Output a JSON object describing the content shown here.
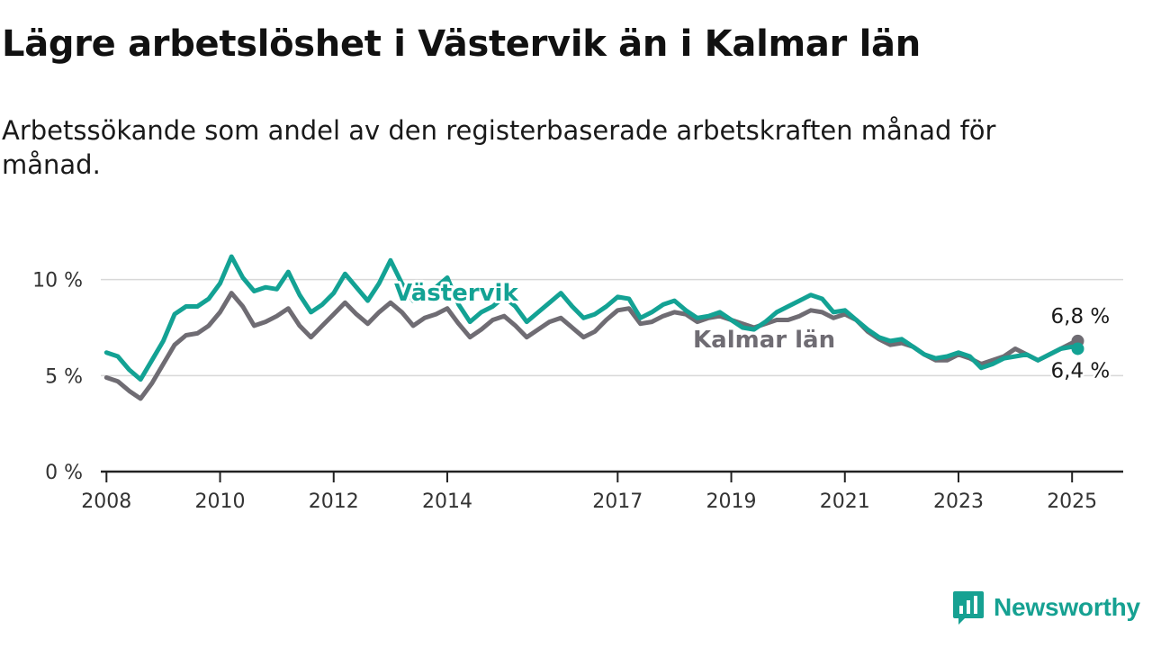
{
  "title": "Lägre arbetslöshet i Västervik än i Kalmar län",
  "subtitle": "Arbetssökande som andel av den registerbaserade arbetskraften månad för månad.",
  "brand": {
    "name": "Newsworthy",
    "icon": "newsworthy-logo-icon"
  },
  "colors": {
    "vastervik": "#13a294",
    "kalmar": "#6f6c73",
    "grid": "#d8d8d8",
    "axis": "#222222"
  },
  "chart_data": {
    "type": "line",
    "xlim": [
      2007.9,
      2025.9
    ],
    "ylim": [
      0,
      12
    ],
    "grid": true,
    "y_ticks": [
      {
        "value": 0,
        "label": "0 %"
      },
      {
        "value": 5,
        "label": "5 %"
      },
      {
        "value": 10,
        "label": "10 %"
      }
    ],
    "x_ticks": [
      {
        "value": 2008,
        "label": "2008"
      },
      {
        "value": 2010,
        "label": "2010"
      },
      {
        "value": 2012,
        "label": "2012"
      },
      {
        "value": 2014,
        "label": "2014"
      },
      {
        "value": 2017,
        "label": "2017"
      },
      {
        "value": 2019,
        "label": "2019"
      },
      {
        "value": 2021,
        "label": "2021"
      },
      {
        "value": 2023,
        "label": "2023"
      },
      {
        "value": 2025,
        "label": "2025"
      }
    ],
    "series": [
      {
        "key": "kalmar",
        "name": "Kalmar län",
        "end_label": "6,8 %",
        "x": [
          2008.0,
          2008.2,
          2008.4,
          2008.6,
          2008.8,
          2009.0,
          2009.2,
          2009.4,
          2009.6,
          2009.8,
          2010.0,
          2010.2,
          2010.4,
          2010.6,
          2010.8,
          2011.0,
          2011.2,
          2011.4,
          2011.6,
          2011.8,
          2012.0,
          2012.2,
          2012.4,
          2012.6,
          2012.8,
          2013.0,
          2013.2,
          2013.4,
          2013.6,
          2013.8,
          2014.0,
          2014.2,
          2014.4,
          2014.6,
          2014.8,
          2015.0,
          2015.2,
          2015.4,
          2015.6,
          2015.8,
          2016.0,
          2016.2,
          2016.4,
          2016.6,
          2016.8,
          2017.0,
          2017.2,
          2017.4,
          2017.6,
          2017.8,
          2018.0,
          2018.2,
          2018.4,
          2018.6,
          2018.8,
          2019.0,
          2019.2,
          2019.4,
          2019.6,
          2019.8,
          2020.0,
          2020.2,
          2020.4,
          2020.6,
          2020.8,
          2021.0,
          2021.2,
          2021.4,
          2021.6,
          2021.8,
          2022.0,
          2022.2,
          2022.4,
          2022.6,
          2022.8,
          2023.0,
          2023.2,
          2023.4,
          2023.6,
          2023.8,
          2024.0,
          2024.2,
          2024.4,
          2024.6,
          2024.8,
          2025.0,
          2025.1
        ],
        "y": [
          4.9,
          4.7,
          4.2,
          3.8,
          4.6,
          5.6,
          6.6,
          7.1,
          7.2,
          7.6,
          8.3,
          9.3,
          8.6,
          7.6,
          7.8,
          8.1,
          8.5,
          7.6,
          7.0,
          7.6,
          8.2,
          8.8,
          8.2,
          7.7,
          8.3,
          8.8,
          8.3,
          7.6,
          8.0,
          8.2,
          8.5,
          7.7,
          7.0,
          7.4,
          7.9,
          8.1,
          7.6,
          7.0,
          7.4,
          7.8,
          8.0,
          7.5,
          7.0,
          7.3,
          7.9,
          8.4,
          8.5,
          7.7,
          7.8,
          8.1,
          8.3,
          8.2,
          7.8,
          8.0,
          8.1,
          7.9,
          7.7,
          7.5,
          7.7,
          7.9,
          7.9,
          8.1,
          8.4,
          8.3,
          8.0,
          8.2,
          7.9,
          7.3,
          6.9,
          6.6,
          6.7,
          6.5,
          6.1,
          5.8,
          5.8,
          6.1,
          5.9,
          5.6,
          5.8,
          6.0,
          6.4,
          6.1,
          5.8,
          6.1,
          6.4,
          6.7,
          6.8
        ]
      },
      {
        "key": "vastervik",
        "name": "Västervik",
        "end_label": "6,4 %",
        "x": [
          2008.0,
          2008.2,
          2008.4,
          2008.6,
          2008.8,
          2009.0,
          2009.2,
          2009.4,
          2009.6,
          2009.8,
          2010.0,
          2010.2,
          2010.4,
          2010.6,
          2010.8,
          2011.0,
          2011.2,
          2011.4,
          2011.6,
          2011.8,
          2012.0,
          2012.2,
          2012.4,
          2012.6,
          2012.8,
          2013.0,
          2013.2,
          2013.4,
          2013.6,
          2013.8,
          2014.0,
          2014.2,
          2014.4,
          2014.6,
          2014.8,
          2015.0,
          2015.2,
          2015.4,
          2015.6,
          2015.8,
          2016.0,
          2016.2,
          2016.4,
          2016.6,
          2016.8,
          2017.0,
          2017.2,
          2017.4,
          2017.6,
          2017.8,
          2018.0,
          2018.2,
          2018.4,
          2018.6,
          2018.8,
          2019.0,
          2019.2,
          2019.4,
          2019.6,
          2019.8,
          2020.0,
          2020.2,
          2020.4,
          2020.6,
          2020.8,
          2021.0,
          2021.2,
          2021.4,
          2021.6,
          2021.8,
          2022.0,
          2022.2,
          2022.4,
          2022.6,
          2022.8,
          2023.0,
          2023.2,
          2023.4,
          2023.6,
          2023.8,
          2024.0,
          2024.2,
          2024.4,
          2024.6,
          2024.8,
          2025.0,
          2025.1
        ],
        "y": [
          6.2,
          6.0,
          5.3,
          4.8,
          5.8,
          6.8,
          8.2,
          8.6,
          8.6,
          9.0,
          9.8,
          11.2,
          10.1,
          9.4,
          9.6,
          9.5,
          10.4,
          9.2,
          8.3,
          8.7,
          9.3,
          10.3,
          9.6,
          8.9,
          9.8,
          11.0,
          9.8,
          8.9,
          9.3,
          9.6,
          10.1,
          8.7,
          7.8,
          8.3,
          8.6,
          9.1,
          8.6,
          7.8,
          8.3,
          8.8,
          9.3,
          8.6,
          8.0,
          8.2,
          8.6,
          9.1,
          9.0,
          8.0,
          8.3,
          8.7,
          8.9,
          8.4,
          8.0,
          8.1,
          8.3,
          7.9,
          7.5,
          7.4,
          7.8,
          8.3,
          8.6,
          8.9,
          9.2,
          9.0,
          8.3,
          8.4,
          7.9,
          7.4,
          7.0,
          6.8,
          6.9,
          6.5,
          6.1,
          5.9,
          6.0,
          6.2,
          6.0,
          5.4,
          5.6,
          5.9,
          6.0,
          6.1,
          5.8,
          6.1,
          6.4,
          6.5,
          6.4
        ]
      }
    ],
    "annotations": [
      {
        "series": "vastervik",
        "text": "Västervik"
      },
      {
        "series": "kalmar",
        "text": "Kalmar län"
      }
    ]
  }
}
